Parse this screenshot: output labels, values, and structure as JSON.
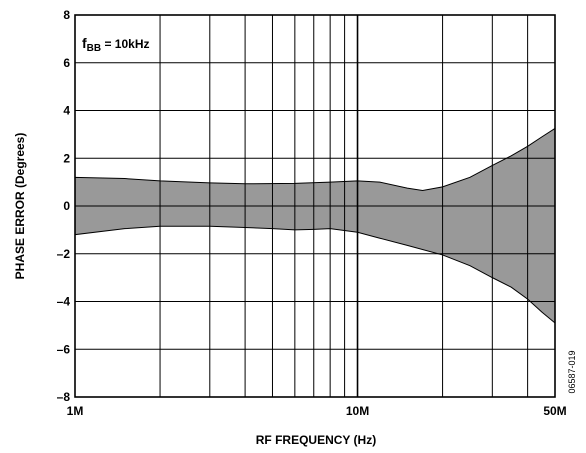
{
  "chart_data": {
    "type": "area",
    "title": "",
    "annotation": {
      "main": "f",
      "sub": "BB",
      "rest": " = 10kHz"
    },
    "figure_id": "06587-019",
    "xlabel": "RF FREQUENCY (Hz)",
    "ylabel": "PHASE ERROR (Degrees)",
    "x_scale": "log",
    "xlim": [
      1000000,
      50000000
    ],
    "ylim": [
      -8,
      8
    ],
    "x_tick_labels": [
      {
        "value": 1000000,
        "label": "1M"
      },
      {
        "value": 10000000,
        "label": "10M"
      },
      {
        "value": 50000000,
        "label": "50M"
      }
    ],
    "x_minor_ticks": [
      2000000,
      3000000,
      4000000,
      5000000,
      6000000,
      7000000,
      8000000,
      9000000,
      20000000,
      30000000,
      40000000
    ],
    "y_ticks": [
      -8,
      -6,
      -4,
      -2,
      0,
      2,
      4,
      6,
      8
    ],
    "y_tick_labels": [
      "–8",
      "–6",
      "–4",
      "–2",
      "0",
      "2",
      "4",
      "6",
      "8"
    ],
    "grid": true,
    "fill_color": "#999999",
    "series": [
      {
        "upper": [
          [
            1000000,
            1.2
          ],
          [
            1500000,
            1.15
          ],
          [
            2000000,
            1.05
          ],
          [
            3000000,
            0.97
          ],
          [
            4000000,
            0.93
          ],
          [
            6000000,
            0.95
          ],
          [
            8000000,
            1.0
          ],
          [
            10000000,
            1.05
          ],
          [
            12000000,
            1.0
          ],
          [
            15000000,
            0.75
          ],
          [
            17000000,
            0.65
          ],
          [
            20000000,
            0.8
          ],
          [
            25000000,
            1.2
          ],
          [
            30000000,
            1.7
          ],
          [
            35000000,
            2.1
          ],
          [
            40000000,
            2.5
          ],
          [
            45000000,
            2.9
          ],
          [
            50000000,
            3.25
          ]
        ],
        "lower": [
          [
            1000000,
            -1.2
          ],
          [
            1500000,
            -0.95
          ],
          [
            2000000,
            -0.85
          ],
          [
            3000000,
            -0.85
          ],
          [
            4000000,
            -0.9
          ],
          [
            5000000,
            -0.95
          ],
          [
            6000000,
            -1.0
          ],
          [
            7000000,
            -0.98
          ],
          [
            8000000,
            -0.95
          ],
          [
            10000000,
            -1.1
          ],
          [
            12000000,
            -1.35
          ],
          [
            15000000,
            -1.65
          ],
          [
            20000000,
            -2.05
          ],
          [
            25000000,
            -2.5
          ],
          [
            30000000,
            -3.0
          ],
          [
            35000000,
            -3.4
          ],
          [
            40000000,
            -3.9
          ],
          [
            45000000,
            -4.45
          ],
          [
            50000000,
            -4.9
          ]
        ]
      }
    ]
  }
}
